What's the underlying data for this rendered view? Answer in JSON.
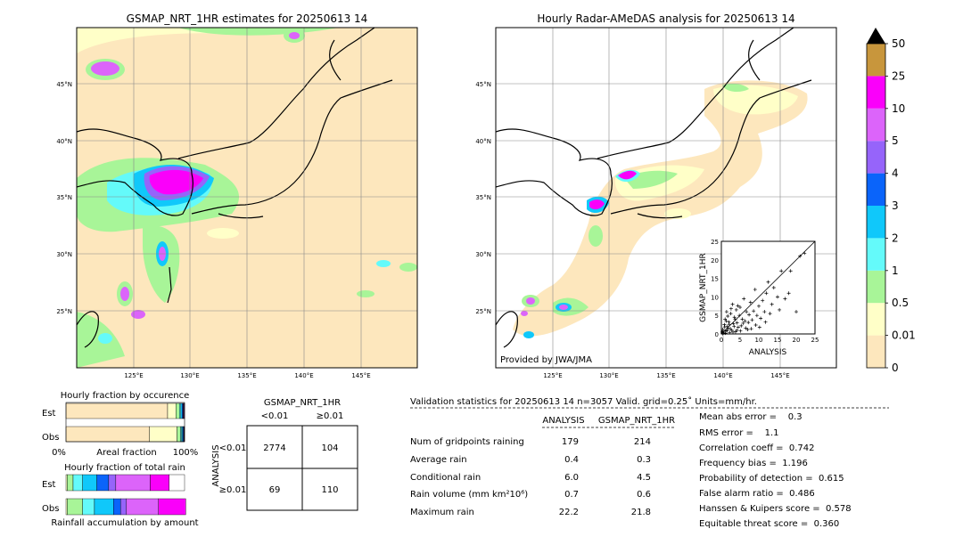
{
  "map_left": {
    "title": "GSMAP_NRT_1HR estimates for 20250613 14",
    "lat_labels": [
      "45°N",
      "40°N",
      "35°N",
      "30°N",
      "25°N"
    ],
    "lon_labels": [
      "125°E",
      "130°E",
      "135°E",
      "140°E",
      "145°E"
    ]
  },
  "map_right": {
    "title": "Hourly Radar-AMeDAS analysis for 20250613 14",
    "lat_labels": [
      "45°N",
      "40°N",
      "35°N",
      "30°N",
      "25°N"
    ],
    "lon_labels": [
      "125°E",
      "130°E",
      "135°E",
      "140°E",
      "145°E"
    ],
    "credit": "Provided by JWA/JMA"
  },
  "colorbar": {
    "levels": [
      "0",
      "0.01",
      "0.5",
      "1",
      "2",
      "3",
      "4",
      "5",
      "10",
      "25",
      "50"
    ],
    "colors": [
      "#fde7bd",
      "#ffffc8",
      "#a8f598",
      "#64fafa",
      "#10c8fa",
      "#0a64fa",
      "#9664fa",
      "#dc64fa",
      "#fa00fa",
      "#c8963c"
    ],
    "extend_color": "#000000"
  },
  "chart_data": [
    {
      "type": "scatter",
      "xlabel": "ANALYSIS",
      "ylabel": "GSMAP_NRT_1HR",
      "xlim": [
        0,
        25
      ],
      "ylim": [
        0,
        25
      ],
      "ticks": [
        "0",
        "5",
        "10",
        "15",
        "20",
        "25"
      ],
      "points": [
        [
          0.2,
          0.5
        ],
        [
          0.4,
          1.2
        ],
        [
          0.6,
          0.3
        ],
        [
          0.8,
          2.5
        ],
        [
          1.0,
          4.0
        ],
        [
          1.2,
          0.8
        ],
        [
          1.4,
          6.0
        ],
        [
          1.6,
          2.0
        ],
        [
          1.8,
          1.5
        ],
        [
          2.0,
          3.2
        ],
        [
          2.2,
          0.4
        ],
        [
          2.5,
          5.5
        ],
        [
          2.8,
          1.0
        ],
        [
          3.0,
          8.0
        ],
        [
          3.2,
          2.8
        ],
        [
          3.5,
          4.5
        ],
        [
          3.8,
          0.6
        ],
        [
          4.0,
          6.5
        ],
        [
          4.2,
          3.0
        ],
        [
          4.5,
          1.8
        ],
        [
          4.8,
          5.0
        ],
        [
          5.0,
          7.2
        ],
        [
          5.3,
          2.2
        ],
        [
          5.6,
          4.0
        ],
        [
          6.0,
          9.5
        ],
        [
          6.3,
          3.5
        ],
        [
          6.7,
          6.0
        ],
        [
          7.0,
          1.2
        ],
        [
          7.4,
          5.2
        ],
        [
          7.8,
          8.5
        ],
        [
          8.2,
          3.8
        ],
        [
          8.6,
          6.2
        ],
        [
          9.0,
          12.0
        ],
        [
          9.5,
          5.0
        ],
        [
          10.0,
          7.5
        ],
        [
          10.5,
          4.2
        ],
        [
          11.0,
          9.0
        ],
        [
          11.5,
          6.0
        ],
        [
          12.0,
          11.0
        ],
        [
          12.5,
          14.0
        ],
        [
          13.0,
          5.5
        ],
        [
          13.5,
          8.0
        ],
        [
          14.0,
          12.5
        ],
        [
          15.0,
          10.0
        ],
        [
          15.5,
          6.5
        ],
        [
          16.0,
          17.0
        ],
        [
          17.0,
          9.5
        ],
        [
          18.0,
          11.0
        ],
        [
          18.5,
          17.0
        ],
        [
          20.0,
          6.0
        ],
        [
          21.0,
          21.0
        ],
        [
          22.2,
          21.8
        ],
        [
          0.3,
          0.1
        ],
        [
          0.5,
          0.7
        ],
        [
          0.9,
          1.9
        ],
        [
          1.1,
          0.2
        ],
        [
          1.3,
          3.5
        ],
        [
          1.5,
          0.9
        ],
        [
          1.7,
          4.8
        ],
        [
          2.1,
          2.6
        ],
        [
          2.4,
          1.4
        ],
        [
          2.6,
          6.8
        ],
        [
          3.1,
          0.5
        ],
        [
          3.4,
          2.0
        ],
        [
          3.7,
          3.9
        ],
        [
          4.1,
          1.0
        ],
        [
          4.4,
          7.6
        ],
        [
          5.1,
          0.8
        ],
        [
          5.8,
          2.9
        ],
        [
          6.5,
          1.6
        ],
        [
          7.2,
          3.1
        ],
        [
          8.0,
          1.4
        ],
        [
          9.2,
          2.4
        ],
        [
          10.2,
          1.8
        ],
        [
          11.8,
          3.2
        ]
      ]
    },
    {
      "type": "bar",
      "title": "Hourly fraction by occurence",
      "categories": [
        "Est",
        "Obs"
      ],
      "xlabel": "Areal fraction",
      "xtick_labels": [
        "0%",
        "100%"
      ],
      "series": [
        {
          "values": [
            0.857,
            0.704
          ],
          "color": "#fde7bd"
        },
        {
          "values": [
            0.07,
            0.232
          ],
          "color": "#ffffc8"
        },
        {
          "values": [
            0.03,
            0.03
          ],
          "color": "#a8f598"
        },
        {
          "values": [
            0.012,
            0.01
          ],
          "color": "#64fafa"
        },
        {
          "values": [
            0.01,
            0.008
          ],
          "color": "#10c8fa"
        },
        {
          "values": [
            0.008,
            0.006
          ],
          "color": "#0a64fa"
        },
        {
          "values": [
            0.005,
            0.004
          ],
          "color": "#9664fa"
        },
        {
          "values": [
            0.005,
            0.004
          ],
          "color": "#dc64fa"
        },
        {
          "values": [
            0.003,
            0.002
          ],
          "color": "#fa00fa"
        }
      ]
    },
    {
      "type": "bar",
      "title": "Hourly fraction of total rain",
      "categories": [
        "Est",
        "Obs"
      ],
      "xlabel": "Rainfall accumulation by amount",
      "series": [
        {
          "values": [
            0.01,
            0.01
          ],
          "color": "#ffffc8"
        },
        {
          "values": [
            0.05,
            0.13
          ],
          "color": "#a8f598"
        },
        {
          "values": [
            0.08,
            0.1
          ],
          "color": "#64fafa"
        },
        {
          "values": [
            0.12,
            0.16
          ],
          "color": "#10c8fa"
        },
        {
          "values": [
            0.1,
            0.06
          ],
          "color": "#0a64fa"
        },
        {
          "values": [
            0.06,
            0.05
          ],
          "color": "#9664fa"
        },
        {
          "values": [
            0.29,
            0.27
          ],
          "color": "#dc64fa"
        },
        {
          "values": [
            0.16,
            0.23
          ],
          "color": "#fa00fa"
        },
        {
          "values": [
            0.13,
            0.0
          ],
          "color": "#ffffff"
        }
      ]
    },
    {
      "type": "table",
      "title": "GSMAP_NRT_1HR",
      "col_headers": [
        "<0.01",
        "≥0.01"
      ],
      "row_axis_label": "ANALYSIS",
      "row_headers": [
        "<0.01",
        "≥0.01"
      ],
      "cells": [
        [
          "2774",
          "104"
        ],
        [
          "69",
          "110"
        ]
      ]
    },
    {
      "type": "table",
      "title": "Validation statistics for 20250613 14  n=3057 Valid. grid=0.25˚ Units=mm/hr.",
      "col_headers": [
        "ANALYSIS",
        "GSMAP_NRT_1HR"
      ],
      "rows": [
        {
          "label": "Num of gridpoints raining",
          "analysis": "179",
          "gsmap": "214"
        },
        {
          "label": "Average rain",
          "analysis": "0.4",
          "gsmap": "0.3"
        },
        {
          "label": "Conditional rain",
          "analysis": "6.0",
          "gsmap": "4.5"
        },
        {
          "label": "Rain volume (mm km²10⁶)",
          "analysis": "0.7",
          "gsmap": "0.6"
        },
        {
          "label": "Maximum rain",
          "analysis": "22.2",
          "gsmap": "21.8"
        }
      ],
      "scores": [
        "Mean abs error =    0.3",
        "RMS error =    1.1",
        "Correlation coeff =  0.742",
        "Frequency bias =  1.196",
        "Probability of detection =  0.615",
        "False alarm ratio =  0.486",
        "Hanssen & Kuipers score =  0.578",
        "Equitable threat score =  0.360"
      ]
    }
  ]
}
